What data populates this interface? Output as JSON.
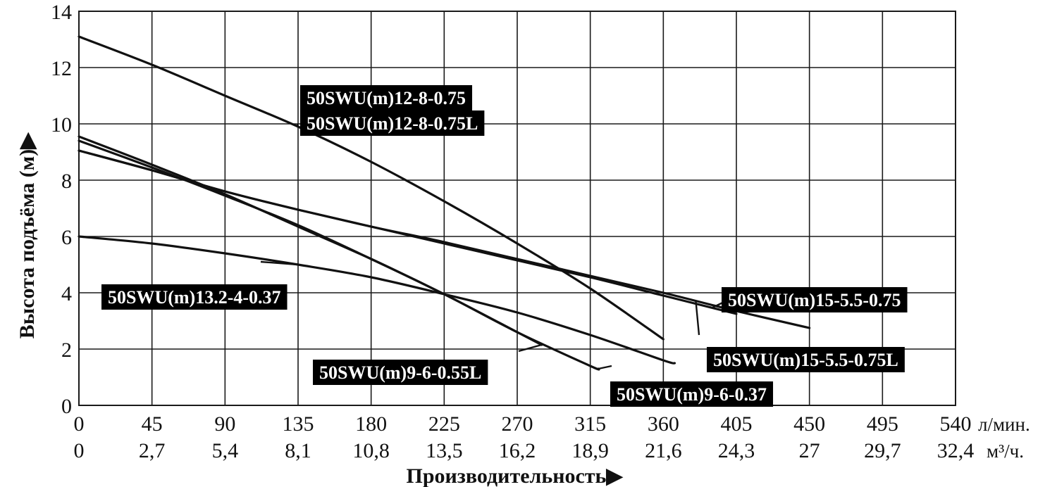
{
  "chart_data": {
    "type": "line",
    "ylabel": "Высота подъёма (м)▶",
    "xlabel": "Производительность▶",
    "x_unit_primary": "л/мин.",
    "x_unit_secondary": "м³/ч.",
    "xlim": [
      0,
      540
    ],
    "ylim": [
      0,
      14
    ],
    "grid": true,
    "x_ticks_primary": [
      "0",
      "45",
      "90",
      "135",
      "180",
      "225",
      "270",
      "315",
      "360",
      "405",
      "450",
      "495",
      "540"
    ],
    "x_ticks_secondary": [
      "0",
      "2,7",
      "5,4",
      "8,1",
      "10,8",
      "13,5",
      "16,2",
      "18,9",
      "21,6",
      "24,3",
      "27",
      "29,7",
      "32,4"
    ],
    "y_ticks": [
      "0",
      "2",
      "4",
      "6",
      "8",
      "10",
      "12",
      "14"
    ],
    "series": [
      {
        "name": "50SWU(m)12-8-0.75 / 50SWU(m)12-8-0.75L",
        "labels": [
          "50SWU(m)12-8-0.75",
          "50SWU(m)12-8-0.75L"
        ],
        "x": [
          0,
          45,
          90,
          135,
          180,
          225,
          270,
          315,
          360
        ],
        "y": [
          13.1,
          12.1,
          11.0,
          9.9,
          8.65,
          7.25,
          5.75,
          4.15,
          2.35
        ]
      },
      {
        "name": "50SWU(m)15-5.5-0.75",
        "labels": [
          "50SWU(m)15-5.5-0.75"
        ],
        "x": [
          0,
          45,
          90,
          135,
          180,
          225,
          270,
          315,
          360,
          405
        ],
        "y": [
          9.05,
          8.35,
          7.6,
          6.95,
          6.35,
          5.75,
          5.15,
          4.55,
          3.9,
          3.25
        ]
      },
      {
        "name": "50SWU(m)15-5.5-0.75L",
        "labels": [
          "50SWU(m)15-5.5-0.75L"
        ],
        "x": [
          0,
          45,
          90,
          135,
          180,
          225,
          270,
          315,
          360,
          405,
          450
        ],
        "y": [
          9.05,
          8.35,
          7.6,
          6.95,
          6.35,
          5.8,
          5.2,
          4.6,
          4.0,
          3.35,
          2.75
        ]
      },
      {
        "name": "50SWU(m)9-6-0.55L",
        "labels": [
          "50SWU(m)9-6-0.55L"
        ],
        "x": [
          0,
          45,
          90,
          135,
          180,
          225,
          270,
          285
        ],
        "y": [
          9.55,
          8.55,
          7.5,
          6.35,
          5.2,
          3.95,
          2.6,
          2.15
        ]
      },
      {
        "name": "50SWU(m)9-6-0.37",
        "labels": [
          "50SWU(m)9-6-0.37"
        ],
        "x": [
          0,
          45,
          90,
          135,
          180,
          225,
          270,
          315,
          320
        ],
        "y": [
          9.4,
          8.45,
          7.45,
          6.4,
          5.2,
          3.95,
          2.6,
          1.4,
          1.3
        ]
      },
      {
        "name": "50SWU(m)13.2-4-0.37",
        "labels": [
          "50SWU(m)13.2-4-0.37"
        ],
        "x": [
          0,
          45,
          90,
          135,
          180,
          225,
          270,
          315,
          360,
          367
        ],
        "y": [
          6.0,
          5.75,
          5.4,
          5.0,
          4.55,
          3.95,
          3.3,
          2.5,
          1.6,
          1.5
        ]
      }
    ]
  }
}
